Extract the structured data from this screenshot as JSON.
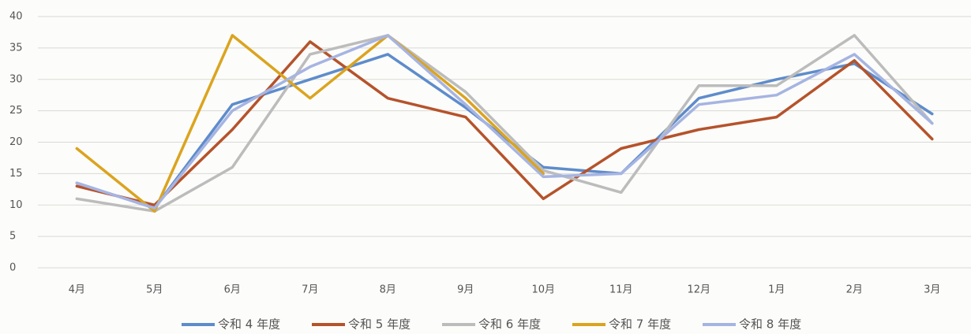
{
  "chart_data": {
    "type": "line",
    "categories": [
      "4月",
      "5月",
      "6月",
      "7月",
      "8月",
      "9月",
      "10月",
      "11月",
      "12月",
      "1月",
      "2月",
      "3月"
    ],
    "series": [
      {
        "name": "令和 4 年度",
        "color": "#5e8ccb",
        "values": [
          13.5,
          9.5,
          26,
          30,
          34,
          25.5,
          16,
          15,
          27,
          30,
          32.5,
          24.5
        ]
      },
      {
        "name": "令和 5 年度",
        "color": "#b5532b",
        "values": [
          13,
          10,
          22,
          36,
          27,
          24,
          11,
          19,
          22,
          24,
          33,
          20.5
        ]
      },
      {
        "name": "令和 6 年度",
        "color": "#bcbcbc",
        "values": [
          11,
          9,
          16,
          34,
          37,
          28,
          15.5,
          12,
          29,
          29,
          37,
          23
        ]
      },
      {
        "name": "令和 7 年度",
        "color": "#dba41f",
        "values": [
          19,
          9,
          37,
          27,
          37,
          27,
          15,
          null,
          null,
          null,
          null,
          null
        ]
      },
      {
        "name": "令和 8 年度",
        "color": "#a6b4e2",
        "values": [
          13.5,
          9.5,
          25,
          32,
          37,
          26,
          14.5,
          15,
          26,
          27.5,
          34,
          23
        ]
      }
    ],
    "ylim": [
      0,
      40
    ],
    "yticks": [
      0,
      5,
      10,
      15,
      20,
      25,
      30,
      35,
      40
    ],
    "grid": true
  }
}
